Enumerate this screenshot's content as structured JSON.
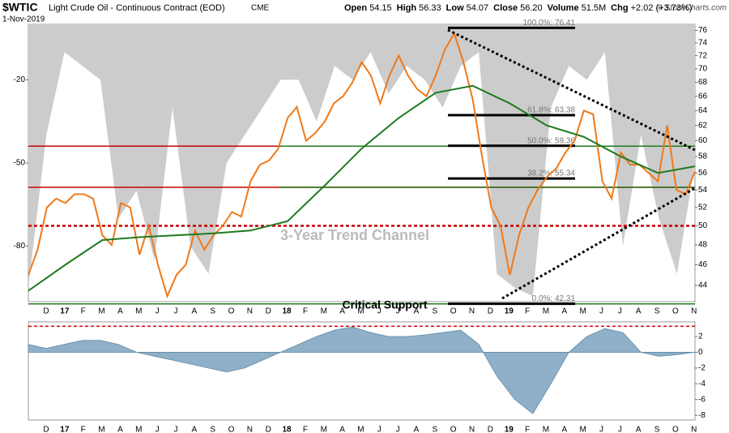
{
  "chart_data": [
    {
      "type": "line",
      "title": "$WTIC",
      "subtitle": "Light Crude Oil - Continuous Contract (EOD)",
      "exchange": "CME",
      "date": "1-Nov-2019",
      "quote": [
        {
          "label": "Open",
          "value": "54.15"
        },
        {
          "label": "High",
          "value": "56.33"
        },
        {
          "label": "Low",
          "value": "54.07"
        },
        {
          "label": "Close",
          "value": "56.20"
        },
        {
          "label": "Volume",
          "value": "51.5M"
        },
        {
          "label": "Chg",
          "value": "+2.02 (+3.73%)"
        }
      ],
      "credit": "© StockCharts.com",
      "x_labels": [
        "D",
        "17",
        "F",
        "M",
        "A",
        "M",
        "J",
        "J",
        "A",
        "S",
        "O",
        "N",
        "D",
        "18",
        "F",
        "M",
        "A",
        "M",
        "J",
        "J",
        "A",
        "S",
        "O",
        "N",
        "D",
        "19",
        "F",
        "M",
        "A",
        "M",
        "J",
        "J",
        "A",
        "S",
        "O",
        "N"
      ],
      "log_scale": true,
      "ylim": [
        42.5,
        77
      ],
      "yticks": [
        44,
        46,
        48,
        50,
        52,
        54,
        56,
        58,
        60,
        62,
        64,
        66,
        68,
        70,
        72,
        74,
        76
      ],
      "y2lim": [
        -100,
        0
      ],
      "y2ticks": [
        -80,
        -50,
        -20
      ],
      "series": [
        {
          "color": "#cccccc",
          "axis": "y2",
          "values": [
            -95,
            -40,
            -10,
            -15,
            -20,
            -70,
            -60,
            -85,
            -30,
            -80,
            -90,
            -50,
            -40,
            -30,
            -20,
            -20,
            -35,
            -15,
            -20,
            -10,
            -25,
            -15,
            -20,
            -30,
            -15,
            -10,
            -90,
            -95,
            -98,
            -30,
            -15,
            -20,
            -10,
            -80,
            -40,
            -70,
            -90,
            -50
          ]
        },
        {
          "color": "#f07818",
          "values": [
            45,
            47.5,
            52,
            53,
            52.5,
            53.5,
            53.5,
            53,
            49,
            48,
            52.5,
            52,
            47,
            50,
            46,
            43,
            45,
            46,
            49.5,
            47.5,
            49,
            50,
            51.5,
            51,
            55,
            57,
            57.5,
            59,
            63,
            64.5,
            60,
            61,
            62.5,
            65,
            66,
            68,
            71,
            69,
            65,
            69,
            72,
            69,
            67,
            66,
            69,
            73,
            75.5,
            71,
            65.5,
            58,
            52,
            50,
            45,
            49,
            52,
            54,
            55.5,
            56.5,
            58.5,
            60,
            64,
            63.5,
            55,
            53,
            58.5,
            57,
            57,
            56,
            55,
            62,
            54,
            53.5,
            56.2
          ]
        },
        {
          "color": "#1f7a1f",
          "values": [
            43.5,
            46,
            48.5,
            48.8,
            49,
            49.2,
            49.5,
            50.5,
            54.5,
            59,
            63,
            66.5,
            67.5,
            65,
            62,
            60.5,
            58,
            56,
            56.8
          ]
        }
      ],
      "levels": [
        {
          "value": 59.3,
          "color": "#cc0000"
        },
        {
          "value": 54.3,
          "color": "#cc0000"
        },
        {
          "value": 50,
          "color": "#cc0000",
          "dash": true
        },
        {
          "value": 59.3,
          "color": "#1f7a1f"
        },
        {
          "value": 54.3,
          "color": "#1f7a1f"
        },
        {
          "value": 42.3,
          "color": "#1f7a1f"
        }
      ],
      "fib": [
        {
          "label": "100.0%: 76.41",
          "value": 76.41
        },
        {
          "label": "61.8%: 63.38",
          "value": 63.38
        },
        {
          "label": "50.0%: 59.36",
          "value": 59.36
        },
        {
          "label": "38.2%: 55.34",
          "value": 55.34
        },
        {
          "label": "0.0%: 42.31",
          "value": 42.31
        }
      ],
      "annotations": [
        "3-Year Trend Channel",
        "Critical Support"
      ]
    },
    {
      "type": "area",
      "x_labels": [
        "D",
        "17",
        "F",
        "M",
        "A",
        "M",
        "J",
        "J",
        "A",
        "S",
        "O",
        "N",
        "D",
        "18",
        "F",
        "M",
        "A",
        "M",
        "J",
        "J",
        "A",
        "S",
        "O",
        "N",
        "D",
        "19",
        "F",
        "M",
        "A",
        "M",
        "J",
        "J",
        "A",
        "S",
        "O",
        "N"
      ],
      "ylim": [
        -8.6,
        3.85
      ],
      "yticks": [
        -8,
        -6,
        -4,
        -2,
        0,
        2
      ],
      "reference": 3.3,
      "color": "#8fb0c8",
      "values": [
        1,
        0.5,
        1,
        1.5,
        1.5,
        1,
        0,
        -0.5,
        -1,
        -1.5,
        -2,
        -2.5,
        -2,
        -1,
        0,
        1,
        2,
        2.8,
        3.2,
        2.5,
        2,
        2,
        2.2,
        2.5,
        2.8,
        1,
        -3,
        -6,
        -7.8,
        -4,
        0,
        2,
        3,
        2.5,
        0,
        -0.5,
        -0.3,
        0
      ]
    }
  ]
}
